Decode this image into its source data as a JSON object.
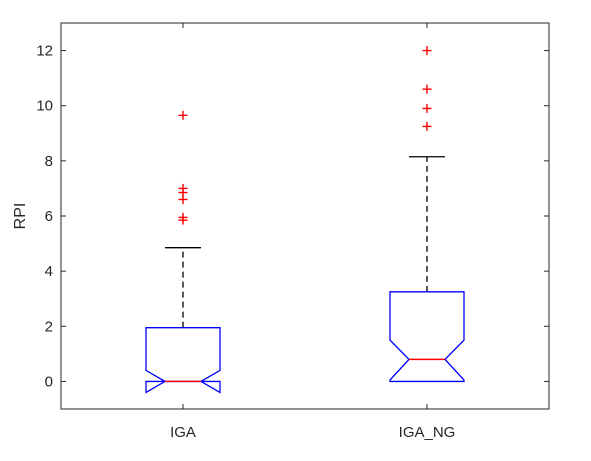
{
  "chart_data": {
    "type": "box",
    "title": "",
    "xlabel": "",
    "ylabel": "RPI",
    "ylim": [
      -1,
      13
    ],
    "yticks": [
      0,
      2,
      4,
      6,
      8,
      10,
      12
    ],
    "grid": false,
    "categories": [
      "IGA",
      "IGA_NG"
    ],
    "boxes": [
      {
        "category": "IGA",
        "min": 0,
        "q1": 0,
        "median": 0,
        "q3": 1.95,
        "whisker_high": 4.85,
        "notch_low": -0.4,
        "notch_high": 0.4,
        "outliers": [
          5.85,
          5.95,
          6.6,
          6.85,
          7.0,
          9.65
        ]
      },
      {
        "category": "IGA_NG",
        "min": 0,
        "q1": 0,
        "median": 0.8,
        "q3": 3.25,
        "whisker_high": 8.15,
        "notch_low": 0.05,
        "notch_high": 1.5,
        "outliers": [
          9.25,
          9.9,
          10.6,
          12.0
        ]
      }
    ],
    "colors": {
      "box": "#0000ff",
      "median": "#ff0000",
      "whisker": "#000000",
      "outlier": "#ff0000",
      "axis": "#262626"
    }
  }
}
